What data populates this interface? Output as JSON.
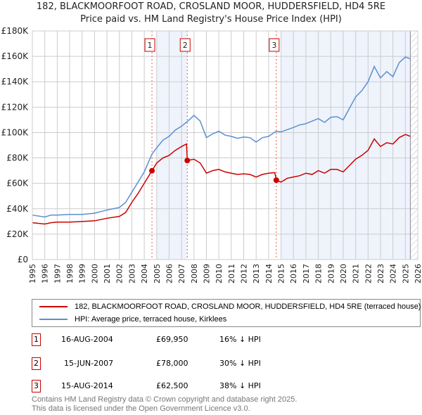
{
  "header": {
    "title": "182, BLACKMOORFOOT ROAD, CROSLAND MOOR, HUDDERSFIELD, HD4 5RE",
    "subtitle": "Price paid vs. HM Land Registry's House Price Index (HPI)"
  },
  "chart_data": {
    "type": "line",
    "title": "182, BLACKMOORFOOT ROAD, CROSLAND MOOR, HUDDERSFIELD, HD4 5RE",
    "subtitle": "Price paid vs. HM Land Registry's House Price Index (HPI)",
    "xlim": [
      1995,
      2026
    ],
    "ylim": [
      0,
      180000
    ],
    "x_ticks": [
      "1995",
      "1996",
      "1997",
      "1998",
      "1999",
      "2000",
      "2001",
      "2002",
      "2003",
      "2004",
      "2005",
      "2006",
      "2007",
      "2008",
      "2009",
      "2010",
      "2011",
      "2012",
      "2013",
      "2014",
      "2015",
      "2016",
      "2017",
      "2018",
      "2019",
      "2020",
      "2021",
      "2022",
      "2023",
      "2024",
      "2025",
      "2026"
    ],
    "y_ticks": [
      {
        "v": 0,
        "label": "£0"
      },
      {
        "v": 20000,
        "label": "£20K"
      },
      {
        "v": 40000,
        "label": "£40K"
      },
      {
        "v": 60000,
        "label": "£60K"
      },
      {
        "v": 80000,
        "label": "£80K"
      },
      {
        "v": 100000,
        "label": "£100K"
      },
      {
        "v": 120000,
        "label": "£120K"
      },
      {
        "v": 140000,
        "label": "£140K"
      },
      {
        "v": 160000,
        "label": "£160K"
      },
      {
        "v": 180000,
        "label": "£180K"
      }
    ],
    "grid": true,
    "shaded_ranges": [
      [
        2005,
        2007.45
      ],
      [
        2015,
        2025.4
      ]
    ],
    "hatched_from": 2025.4,
    "series": [
      {
        "name": "182, BLACKMOORFOOT ROAD, CROSLAND MOOR, HUDDERSFIELD, HD4 5RE (terraced house)",
        "color": "#cc0000",
        "points": [
          [
            1995,
            29000
          ],
          [
            1996,
            28000
          ],
          [
            1996.5,
            29000
          ],
          [
            1997,
            29500
          ],
          [
            1998,
            29500
          ],
          [
            1999,
            30000
          ],
          [
            2000,
            30500
          ],
          [
            2001,
            32500
          ],
          [
            2002,
            34000
          ],
          [
            2002.5,
            37000
          ],
          [
            2003,
            45000
          ],
          [
            2003.5,
            52000
          ],
          [
            2004,
            60000
          ],
          [
            2004.62,
            69950
          ],
          [
            2005,
            76000
          ],
          [
            2005.5,
            80000
          ],
          [
            2006,
            82000
          ],
          [
            2006.5,
            86000
          ],
          [
            2007,
            89000
          ],
          [
            2007.4,
            91000
          ],
          [
            2007.46,
            78000
          ],
          [
            2008,
            79000
          ],
          [
            2008.5,
            76000
          ],
          [
            2009,
            68000
          ],
          [
            2009.5,
            70000
          ],
          [
            2010,
            71000
          ],
          [
            2010.5,
            69000
          ],
          [
            2011,
            68000
          ],
          [
            2011.5,
            67000
          ],
          [
            2012,
            67500
          ],
          [
            2012.5,
            67000
          ],
          [
            2013,
            65000
          ],
          [
            2013.5,
            67000
          ],
          [
            2014,
            68000
          ],
          [
            2014.5,
            68500
          ],
          [
            2014.62,
            62500
          ],
          [
            2015,
            61000
          ],
          [
            2015.5,
            64000
          ],
          [
            2016,
            65000
          ],
          [
            2016.5,
            66000
          ],
          [
            2017,
            68000
          ],
          [
            2017.5,
            67000
          ],
          [
            2018,
            70000
          ],
          [
            2018.5,
            68000
          ],
          [
            2019,
            71000
          ],
          [
            2019.5,
            71000
          ],
          [
            2020,
            69000
          ],
          [
            2020.5,
            74000
          ],
          [
            2021,
            79000
          ],
          [
            2021.5,
            82000
          ],
          [
            2022,
            86000
          ],
          [
            2022.5,
            95000
          ],
          [
            2023,
            89000
          ],
          [
            2023.5,
            92000
          ],
          [
            2024,
            91000
          ],
          [
            2024.5,
            96000
          ],
          [
            2025,
            98500
          ],
          [
            2025.4,
            97000
          ]
        ]
      },
      {
        "name": "HPI: Average price, terraced house, Kirklees",
        "color": "#5b8fd0",
        "points": [
          [
            1995,
            35000
          ],
          [
            1996,
            33500
          ],
          [
            1996.5,
            35000
          ],
          [
            1997,
            35000
          ],
          [
            1998,
            35500
          ],
          [
            1999,
            35500
          ],
          [
            2000,
            36500
          ],
          [
            2001,
            39000
          ],
          [
            2002,
            41000
          ],
          [
            2002.5,
            45000
          ],
          [
            2003,
            53000
          ],
          [
            2003.5,
            61000
          ],
          [
            2004,
            69000
          ],
          [
            2004.62,
            83000
          ],
          [
            2005,
            88000
          ],
          [
            2005.5,
            94000
          ],
          [
            2006,
            97000
          ],
          [
            2006.5,
            102000
          ],
          [
            2007,
            105000
          ],
          [
            2007.5,
            109000
          ],
          [
            2008,
            113500
          ],
          [
            2008.5,
            109000
          ],
          [
            2009,
            96000
          ],
          [
            2009.5,
            99000
          ],
          [
            2010,
            101000
          ],
          [
            2010.5,
            98000
          ],
          [
            2011,
            97000
          ],
          [
            2011.5,
            95500
          ],
          [
            2012,
            96500
          ],
          [
            2012.5,
            96000
          ],
          [
            2013,
            92500
          ],
          [
            2013.5,
            96000
          ],
          [
            2014,
            97000
          ],
          [
            2014.6,
            101000
          ],
          [
            2015,
            100500
          ],
          [
            2016,
            104000
          ],
          [
            2016.5,
            106000
          ],
          [
            2017,
            107000
          ],
          [
            2017.5,
            109000
          ],
          [
            2018,
            111000
          ],
          [
            2018.5,
            108000
          ],
          [
            2019,
            112000
          ],
          [
            2019.5,
            112500
          ],
          [
            2020,
            110000
          ],
          [
            2020.5,
            119000
          ],
          [
            2021,
            128000
          ],
          [
            2021.5,
            133000
          ],
          [
            2022,
            140000
          ],
          [
            2022.5,
            152000
          ],
          [
            2023,
            143000
          ],
          [
            2023.5,
            148000
          ],
          [
            2024,
            144000
          ],
          [
            2024.5,
            155000
          ],
          [
            2025,
            159500
          ],
          [
            2025.4,
            158000
          ]
        ]
      }
    ],
    "sales": [
      {
        "n": "1",
        "x": 2004.62,
        "y": 69950
      },
      {
        "n": "2",
        "x": 2007.46,
        "y": 78000
      },
      {
        "n": "3",
        "x": 2014.62,
        "y": 62500
      }
    ]
  },
  "legend": {
    "red_label": "182, BLACKMOORFOOT ROAD, CROSLAND MOOR, HUDDERSFIELD, HD4 5RE (terraced house)",
    "blue_label": "HPI: Average price, terraced house, Kirklees"
  },
  "transactions": [
    {
      "n": "1",
      "date": "16-AUG-2004",
      "price": "£69,950",
      "hpi": "16% ↓ HPI"
    },
    {
      "n": "2",
      "date": "15-JUN-2007",
      "price": "£78,000",
      "hpi": "30% ↓ HPI"
    },
    {
      "n": "3",
      "date": "15-AUG-2014",
      "price": "£62,500",
      "hpi": "38% ↓ HPI"
    }
  ],
  "footer": {
    "line1": "Contains HM Land Registry data © Crown copyright and database right 2025.",
    "line2": "This data is licensed under the Open Government Licence v3.0."
  }
}
